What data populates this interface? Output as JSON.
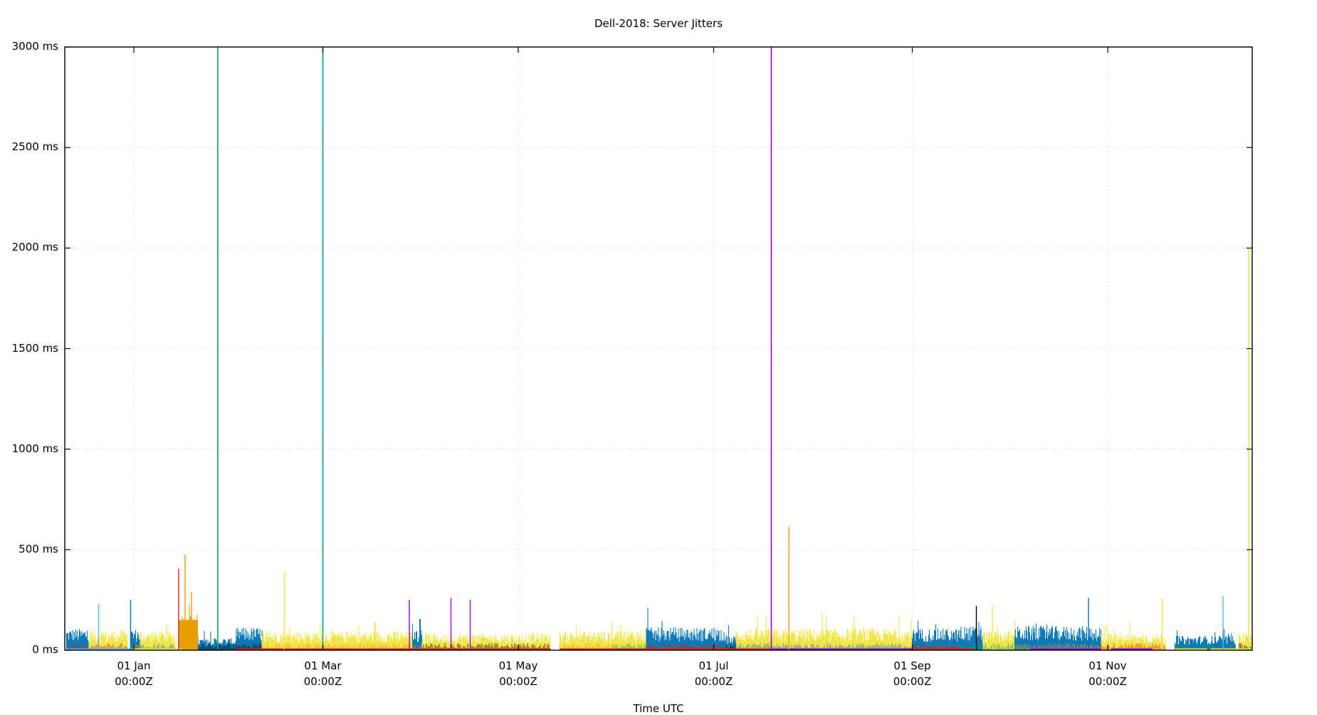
{
  "chart_data": {
    "type": "line",
    "title": "Dell-2018: Server Jitters",
    "xlabel": "Time UTC",
    "ylabel": "",
    "ylim": [
      0,
      3000
    ],
    "y_unit": "ms",
    "grid": true,
    "legend": "none",
    "x_range": [
      "2017-12-10",
      "2018-12-16"
    ],
    "y_ticks": [
      {
        "value": 0,
        "label": "0 ms"
      },
      {
        "value": 500,
        "label": "500 ms"
      },
      {
        "value": 1000,
        "label": "1000 ms"
      },
      {
        "value": 1500,
        "label": "1500 ms"
      },
      {
        "value": 2000,
        "label": "2000 ms"
      },
      {
        "value": 2500,
        "label": "2500 ms"
      },
      {
        "value": 3000,
        "label": "3000 ms"
      }
    ],
    "x_ticks": [
      {
        "day": 0,
        "line1": "01 Jan",
        "line2": "00:00Z"
      },
      {
        "day": 59,
        "line1": "01 Mar",
        "line2": "00:00Z"
      },
      {
        "day": 120,
        "line1": "01 May",
        "line2": "00:00Z"
      },
      {
        "day": 181,
        "line1": "01 Jul",
        "line2": "00:00Z"
      },
      {
        "day": 243,
        "line1": "01 Sep",
        "line2": "00:00Z"
      },
      {
        "day": 304,
        "line1": "01 Nov",
        "line2": "00:00Z"
      }
    ],
    "series_colors": {
      "blue": "#0072b2",
      "light_blue": "#56b4e9",
      "yellow": "#f0e442",
      "orange": "#e69f00",
      "green": "#009e73",
      "red": "#e51e10",
      "purple": "#9400d3",
      "black": "#000000"
    },
    "bands": [
      {
        "color": "blue",
        "from": -21,
        "to": -14,
        "level": 90
      },
      {
        "color": "yellow",
        "from": -14,
        "to": -2,
        "level": 85
      },
      {
        "color": "blue",
        "from": -1,
        "to": 2,
        "level": 90
      },
      {
        "color": "yellow",
        "from": 2,
        "to": 13,
        "level": 80
      },
      {
        "color": "orange",
        "from": 14,
        "to": 20,
        "level": 150
      },
      {
        "color": "blue",
        "from": 20,
        "to": 32,
        "level": 50
      },
      {
        "color": "blue",
        "from": 32,
        "to": 40,
        "level": 95
      },
      {
        "color": "yellow",
        "from": 40,
        "to": 87,
        "level": 80
      },
      {
        "color": "blue",
        "from": 87,
        "to": 90,
        "level": 90
      },
      {
        "color": "yellow",
        "from": 90,
        "to": 130,
        "level": 70
      },
      {
        "color": "yellow",
        "from": 133,
        "to": 150,
        "level": 80
      },
      {
        "color": "yellow",
        "from": 150,
        "to": 160,
        "level": 85
      },
      {
        "color": "blue",
        "from": 160,
        "to": 185,
        "level": 95
      },
      {
        "color": "blue",
        "from": 185,
        "to": 188,
        "level": 60
      },
      {
        "color": "yellow",
        "from": 188,
        "to": 243,
        "level": 90
      },
      {
        "color": "blue",
        "from": 243,
        "to": 258,
        "level": 90
      },
      {
        "color": "blue",
        "from": 258,
        "to": 265,
        "level": 100
      },
      {
        "color": "yellow",
        "from": 265,
        "to": 275,
        "level": 80
      },
      {
        "color": "blue",
        "from": 275,
        "to": 302,
        "level": 100
      },
      {
        "color": "yellow",
        "from": 302,
        "to": 322,
        "level": 70
      },
      {
        "color": "blue",
        "from": 325,
        "to": 344,
        "level": 60
      },
      {
        "color": "yellow",
        "from": 345,
        "to": 349,
        "level": 70
      }
    ],
    "spikes": [
      {
        "color": "green",
        "day": 26.2,
        "value": 3000
      },
      {
        "color": "green",
        "day": 59,
        "value": 3000
      },
      {
        "color": "purple",
        "day": 199,
        "value": 3000
      },
      {
        "color": "yellow",
        "day": 348,
        "value": 2000
      },
      {
        "color": "orange",
        "day": 204.5,
        "value": 615
      },
      {
        "color": "orange",
        "day": 16,
        "value": 475
      },
      {
        "color": "red",
        "day": 14,
        "value": 405
      },
      {
        "color": "orange",
        "day": 18,
        "value": 290
      },
      {
        "color": "yellow",
        "day": 47,
        "value": 390
      },
      {
        "color": "blue",
        "day": -1,
        "value": 250
      },
      {
        "color": "light_blue",
        "day": -11,
        "value": 230
      },
      {
        "color": "purple",
        "day": 86,
        "value": 250
      },
      {
        "color": "purple",
        "day": 99,
        "value": 260
      },
      {
        "color": "purple",
        "day": 105,
        "value": 250
      },
      {
        "color": "yellow",
        "day": 321,
        "value": 260
      },
      {
        "color": "blue",
        "day": 298,
        "value": 260
      },
      {
        "color": "light_blue",
        "day": 340,
        "value": 270
      },
      {
        "color": "yellow",
        "day": 268,
        "value": 220
      },
      {
        "color": "black",
        "day": 263,
        "value": 220
      }
    ],
    "baselines": [
      {
        "color": "light_blue",
        "from": -21,
        "to": 0
      },
      {
        "color": "yellow",
        "from": 0,
        "to": 15
      },
      {
        "color": "red",
        "from": 32,
        "to": 130
      },
      {
        "color": "red",
        "from": 133,
        "to": 199
      },
      {
        "color": "purple",
        "from": 199,
        "to": 243
      },
      {
        "color": "red",
        "from": 243,
        "to": 262
      },
      {
        "color": "purple",
        "from": 280,
        "to": 302
      },
      {
        "color": "purple",
        "from": 305,
        "to": 318
      },
      {
        "color": "yellow",
        "from": 325,
        "to": 335
      },
      {
        "color": "yellow",
        "from": 336,
        "to": 349
      }
    ]
  }
}
